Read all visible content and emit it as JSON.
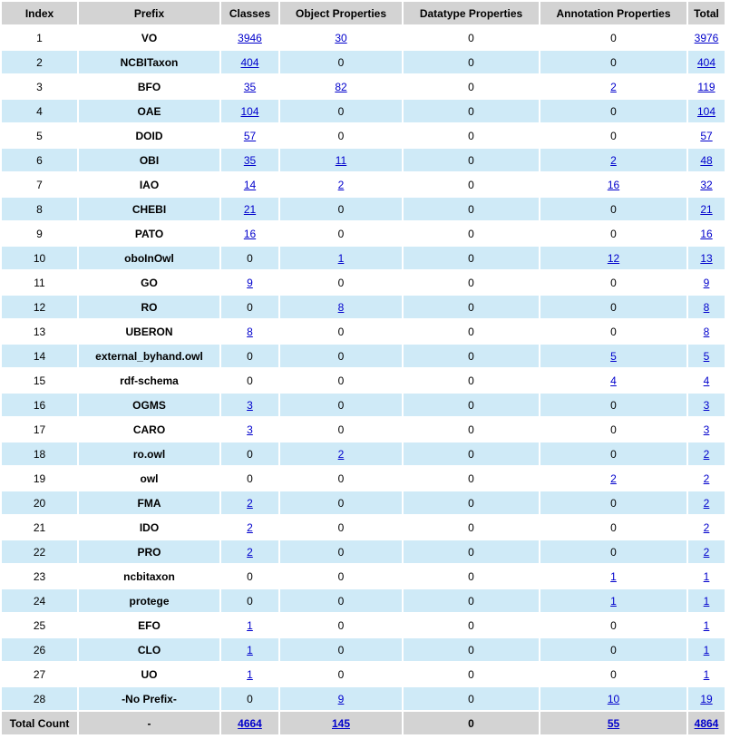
{
  "headers": [
    "Index",
    "Prefix",
    "Classes",
    "Object Properties",
    "Datatype Properties",
    "Annotation Properties",
    "Total"
  ],
  "rows": [
    {
      "index": "1",
      "prefix": "VO",
      "classes": "3946",
      "object": "30",
      "datatype": "0",
      "annotation": "0",
      "total": "3976"
    },
    {
      "index": "2",
      "prefix": "NCBITaxon",
      "classes": "404",
      "object": "0",
      "datatype": "0",
      "annotation": "0",
      "total": "404"
    },
    {
      "index": "3",
      "prefix": "BFO",
      "classes": "35",
      "object": "82",
      "datatype": "0",
      "annotation": "2",
      "total": "119"
    },
    {
      "index": "4",
      "prefix": "OAE",
      "classes": "104",
      "object": "0",
      "datatype": "0",
      "annotation": "0",
      "total": "104"
    },
    {
      "index": "5",
      "prefix": "DOID",
      "classes": "57",
      "object": "0",
      "datatype": "0",
      "annotation": "0",
      "total": "57"
    },
    {
      "index": "6",
      "prefix": "OBI",
      "classes": "35",
      "object": "11",
      "datatype": "0",
      "annotation": "2",
      "total": "48"
    },
    {
      "index": "7",
      "prefix": "IAO",
      "classes": "14",
      "object": "2",
      "datatype": "0",
      "annotation": "16",
      "total": "32"
    },
    {
      "index": "8",
      "prefix": "CHEBI",
      "classes": "21",
      "object": "0",
      "datatype": "0",
      "annotation": "0",
      "total": "21"
    },
    {
      "index": "9",
      "prefix": "PATO",
      "classes": "16",
      "object": "0",
      "datatype": "0",
      "annotation": "0",
      "total": "16"
    },
    {
      "index": "10",
      "prefix": "oboInOwl",
      "classes": "0",
      "object": "1",
      "datatype": "0",
      "annotation": "12",
      "total": "13"
    },
    {
      "index": "11",
      "prefix": "GO",
      "classes": "9",
      "object": "0",
      "datatype": "0",
      "annotation": "0",
      "total": "9"
    },
    {
      "index": "12",
      "prefix": "RO",
      "classes": "0",
      "object": "8",
      "datatype": "0",
      "annotation": "0",
      "total": "8"
    },
    {
      "index": "13",
      "prefix": "UBERON",
      "classes": "8",
      "object": "0",
      "datatype": "0",
      "annotation": "0",
      "total": "8"
    },
    {
      "index": "14",
      "prefix": "external_byhand.owl",
      "classes": "0",
      "object": "0",
      "datatype": "0",
      "annotation": "5",
      "total": "5"
    },
    {
      "index": "15",
      "prefix": "rdf-schema",
      "classes": "0",
      "object": "0",
      "datatype": "0",
      "annotation": "4",
      "total": "4"
    },
    {
      "index": "16",
      "prefix": "OGMS",
      "classes": "3",
      "object": "0",
      "datatype": "0",
      "annotation": "0",
      "total": "3"
    },
    {
      "index": "17",
      "prefix": "CARO",
      "classes": "3",
      "object": "0",
      "datatype": "0",
      "annotation": "0",
      "total": "3"
    },
    {
      "index": "18",
      "prefix": "ro.owl",
      "classes": "0",
      "object": "2",
      "datatype": "0",
      "annotation": "0",
      "total": "2"
    },
    {
      "index": "19",
      "prefix": "owl",
      "classes": "0",
      "object": "0",
      "datatype": "0",
      "annotation": "2",
      "total": "2"
    },
    {
      "index": "20",
      "prefix": "FMA",
      "classes": "2",
      "object": "0",
      "datatype": "0",
      "annotation": "0",
      "total": "2"
    },
    {
      "index": "21",
      "prefix": "IDO",
      "classes": "2",
      "object": "0",
      "datatype": "0",
      "annotation": "0",
      "total": "2"
    },
    {
      "index": "22",
      "prefix": "PRO",
      "classes": "2",
      "object": "0",
      "datatype": "0",
      "annotation": "0",
      "total": "2"
    },
    {
      "index": "23",
      "prefix": "ncbitaxon",
      "classes": "0",
      "object": "0",
      "datatype": "0",
      "annotation": "1",
      "total": "1"
    },
    {
      "index": "24",
      "prefix": "protege",
      "classes": "0",
      "object": "0",
      "datatype": "0",
      "annotation": "1",
      "total": "1"
    },
    {
      "index": "25",
      "prefix": "EFO",
      "classes": "1",
      "object": "0",
      "datatype": "0",
      "annotation": "0",
      "total": "1"
    },
    {
      "index": "26",
      "prefix": "CLO",
      "classes": "1",
      "object": "0",
      "datatype": "0",
      "annotation": "0",
      "total": "1"
    },
    {
      "index": "27",
      "prefix": "UO",
      "classes": "1",
      "object": "0",
      "datatype": "0",
      "annotation": "0",
      "total": "1"
    },
    {
      "index": "28",
      "prefix": "-No Prefix-",
      "classes": "0",
      "object": "9",
      "datatype": "0",
      "annotation": "10",
      "total": "19"
    }
  ],
  "footer": {
    "label": "Total Count",
    "prefix": "-",
    "classes": "4664",
    "object": "145",
    "datatype": "0",
    "annotation": "55",
    "total": "4864"
  },
  "colors": {
    "header_bg": "#d3d3d3",
    "row_alt_bg": "#cfeaf7",
    "row_bg": "#ffffff",
    "link": "#0000cc"
  }
}
